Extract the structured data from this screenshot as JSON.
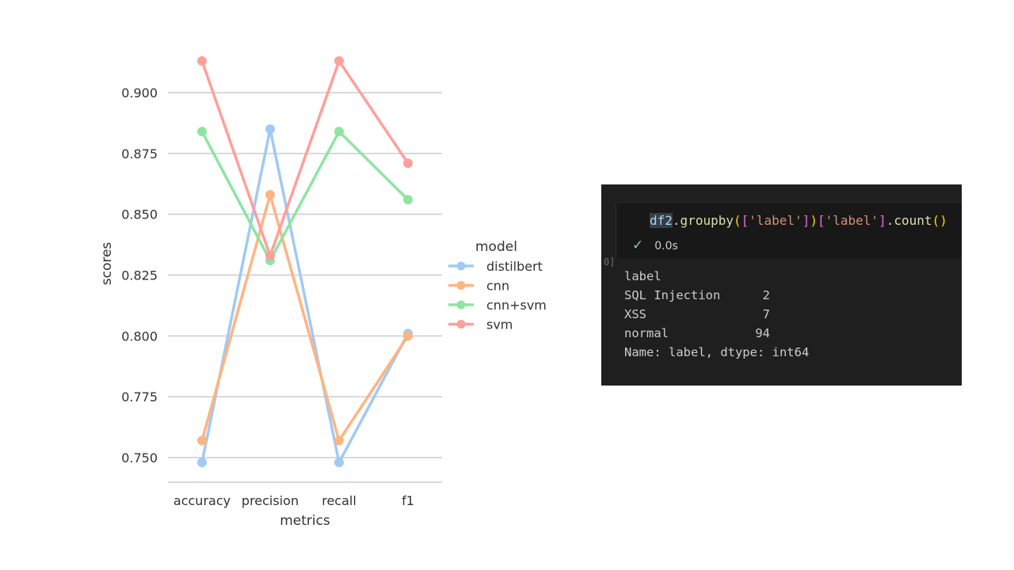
{
  "chart_data": {
    "type": "line",
    "categories": [
      "accuracy",
      "precision",
      "recall",
      "f1"
    ],
    "xlabel": "metrics",
    "ylabel": "scores",
    "ylim": [
      0.74,
      0.92
    ],
    "yticks": [
      0.75,
      0.775,
      0.8,
      0.825,
      0.85,
      0.875,
      0.9
    ],
    "ytick_labels": [
      "0.750",
      "0.775",
      "0.800",
      "0.825",
      "0.850",
      "0.875",
      "0.900"
    ],
    "grid": "horizontal",
    "legend": {
      "title": "model",
      "placement": "right"
    },
    "series": [
      {
        "name": "distilbert",
        "color": "#a1c9f4",
        "values": [
          0.748,
          0.885,
          0.748,
          0.801
        ]
      },
      {
        "name": "cnn",
        "color": "#ffb482",
        "values": [
          0.757,
          0.858,
          0.757,
          0.8
        ]
      },
      {
        "name": "cnn+svm",
        "color": "#8de5a1",
        "values": [
          0.884,
          0.831,
          0.884,
          0.856
        ]
      },
      {
        "name": "svm",
        "color": "#ff9f9b",
        "values": [
          0.913,
          0.833,
          0.913,
          0.871
        ]
      }
    ]
  },
  "notebook": {
    "exec_count": "0]",
    "code": {
      "var": "df2",
      "dot1": ".",
      "fn1": "groupby",
      "p1": "(",
      "b1": "[",
      "s1": "'label'",
      "b2": "]",
      "p2": ")",
      "b3": "[",
      "s2": "'label'",
      "b4": "]",
      "dot2": ".",
      "fn2": "count",
      "p3": "()"
    },
    "status": {
      "icon": "check-icon",
      "time": "0.0s"
    },
    "output": {
      "header": "label",
      "rows": [
        {
          "key": "SQL Injection",
          "value": "2"
        },
        {
          "key": "XSS",
          "value": "7"
        },
        {
          "key": "normal",
          "value": "94"
        }
      ],
      "footer": "Name: label, dtype: int64"
    }
  }
}
